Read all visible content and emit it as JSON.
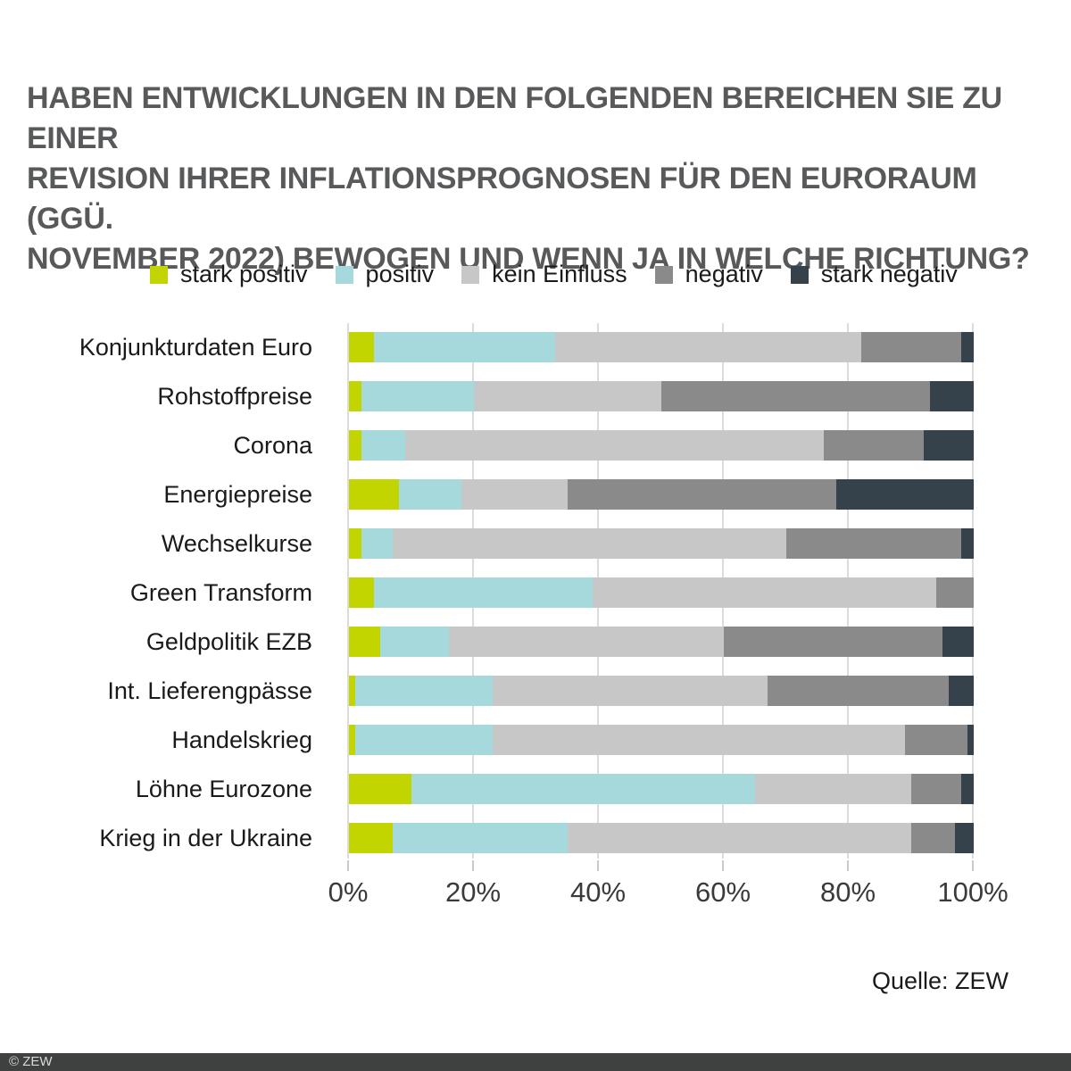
{
  "title": {
    "lines": [
      "HABEN ENTWICKLUNGEN IN DEN FOLGENDEN BEREICHEN SIE ZU EINER",
      "REVISION IHRER INFLATIONSPROGNOSEN FÜR DEN EURORAUM (GGÜ.",
      "NOVEMBER 2022) BEWOGEN UND WENN JA IN WELCHE RICHTUNG?"
    ],
    "color": "#58595b"
  },
  "chart_data": {
    "type": "bar",
    "orientation": "horizontal",
    "stacked": true,
    "value_unit": "percent",
    "title": "Haben Entwicklungen in den folgenden Bereichen Sie zu einer Revision Ihrer Inflationsprognosen für den Euroraum (ggü. November 2022) bewogen und wenn ja in welche Richtung?",
    "categories": [
      "Konjunkturdaten Euro",
      "Rohstoffpreise",
      "Corona",
      "Energiepreise",
      "Wechselkurse",
      "Green Transform",
      "Geldpolitik EZB",
      "Int. Lieferengpässe",
      "Handelskrieg",
      "Löhne Eurozone",
      "Krieg in der Ukraine"
    ],
    "series": [
      {
        "name": "stark positiv",
        "color": "#c3d500",
        "values": [
          4,
          2,
          2,
          8,
          2,
          4,
          5,
          1,
          1,
          10,
          7
        ]
      },
      {
        "name": "positiv",
        "color": "#a6d9dc",
        "values": [
          29,
          18,
          7,
          10,
          5,
          35,
          11,
          22,
          22,
          55,
          28
        ]
      },
      {
        "name": "kein Einfluss",
        "color": "#c7c7c7",
        "values": [
          49,
          30,
          67,
          17,
          63,
          55,
          44,
          44,
          66,
          25,
          55
        ]
      },
      {
        "name": "negativ",
        "color": "#8a8a8a",
        "values": [
          16,
          43,
          16,
          43,
          28,
          6,
          35,
          29,
          10,
          8,
          7
        ]
      },
      {
        "name": "stark negativ",
        "color": "#36424b",
        "values": [
          2,
          7,
          8,
          22,
          2,
          0,
          5,
          4,
          1,
          2,
          3
        ]
      }
    ],
    "x_axis": {
      "min": 0,
      "max": 100,
      "tick_labels": [
        "0%",
        "20%",
        "40%",
        "60%",
        "80%",
        "100%"
      ],
      "grid": true
    },
    "legend_position": "top"
  },
  "source": {
    "label": "Quelle: ZEW"
  },
  "footer": {
    "text": "© ZEW",
    "bar_color": "#3f4040",
    "text_color": "#d9d9d9"
  }
}
